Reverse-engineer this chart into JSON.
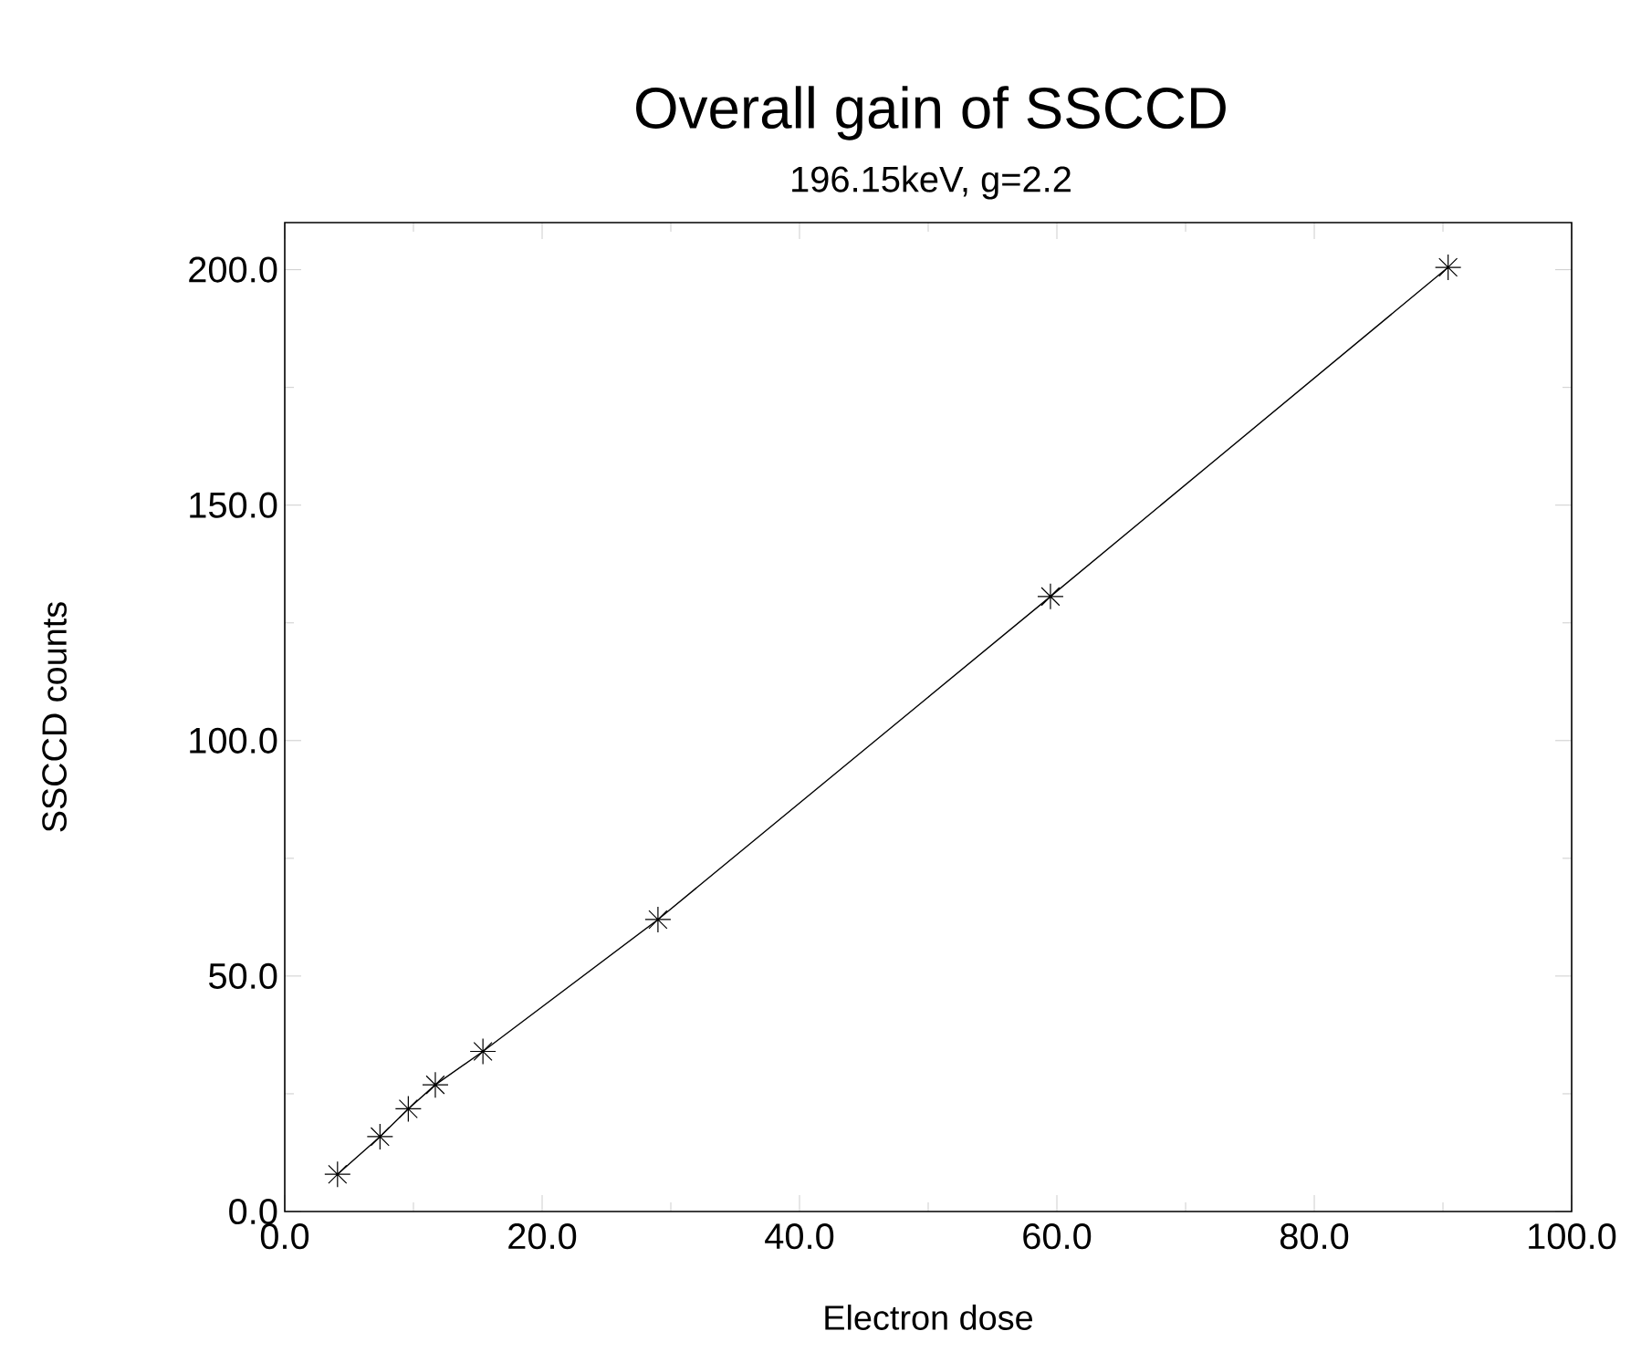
{
  "chart_data": {
    "type": "line",
    "title": "Overall gain of SSCCD",
    "subtitle": "196.15keV, g=2.2",
    "xlabel": "Electron dose",
    "ylabel": "SSCCD counts",
    "x": [
      4.1,
      7.4,
      9.6,
      11.7,
      15.4,
      29.0,
      59.5,
      90.4
    ],
    "values": [
      7.9,
      15.9,
      21.8,
      26.9,
      34.0,
      62.0,
      130.6,
      200.5
    ],
    "color": "#000000",
    "marker": "cross",
    "line_style": "solid",
    "grid": false,
    "xlim": [
      0,
      100
    ],
    "ylim": [
      0,
      210
    ],
    "xticks": [
      {
        "value": 0,
        "label": "0.0"
      },
      {
        "value": 20,
        "label": "20.0"
      },
      {
        "value": 40,
        "label": "40.0"
      },
      {
        "value": 60,
        "label": "60.0"
      },
      {
        "value": 80,
        "label": "80.0"
      },
      {
        "value": 100,
        "label": "100.0"
      }
    ],
    "yticks": [
      {
        "value": 0,
        "label": "0.0"
      },
      {
        "value": 50,
        "label": "50.0"
      },
      {
        "value": 100,
        "label": "100.0"
      },
      {
        "value": 150,
        "label": "150.0"
      },
      {
        "value": 200,
        "label": "200.0"
      }
    ]
  }
}
